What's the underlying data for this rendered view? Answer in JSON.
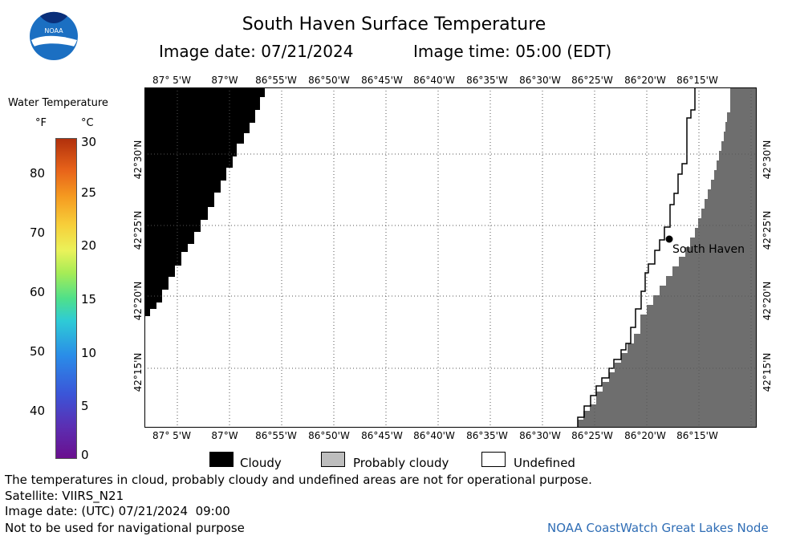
{
  "header": {
    "title": "South Haven Surface Temperature",
    "image_date": "Image date: 07/21/2024",
    "image_time": "Image time: 05:00 (EDT)"
  },
  "logo": {
    "text": "NOAA",
    "icon": "noaa-logo"
  },
  "color_scale": {
    "title": "Water Temperature",
    "unit_f": "°F",
    "unit_c": "°C",
    "fahrenheit_ticks": [
      "80",
      "70",
      "60",
      "50",
      "40"
    ],
    "celsius_ticks": [
      "30",
      "25",
      "20",
      "15",
      "10",
      "5",
      "0"
    ]
  },
  "map": {
    "lon_labels": [
      "87° 5'W",
      "87°W",
      "86°55'W",
      "86°50'W",
      "86°45'W",
      "86°40'W",
      "86°35'W",
      "86°30'W",
      "86°25'W",
      "86°20'W",
      "86°15'W"
    ],
    "lat_labels": [
      "42°30'N",
      "42°25'N",
      "42°20'N",
      "42°15'N"
    ],
    "place": "South Haven",
    "colors": {
      "cloud": "#000000",
      "land": "#6e6e6e",
      "water_undefined": "#ffffff",
      "probably_cloudy": "#bdbdbd"
    }
  },
  "legend": {
    "cloudy": "Cloudy",
    "probably_cloudy": "Probably cloudy",
    "undefined": "Undefined"
  },
  "footer": {
    "disclaimer": "The temperatures in cloud, probably cloudy and undefined areas are not for operational purpose.",
    "satellite": "Satellite: VIIRS_N21",
    "utc_date": "Image date: (UTC) 07/21/2024  09:00",
    "nav_warning": "Not to be used for navigational purpose",
    "credit": "NOAA CoastWatch Great Lakes Node"
  }
}
